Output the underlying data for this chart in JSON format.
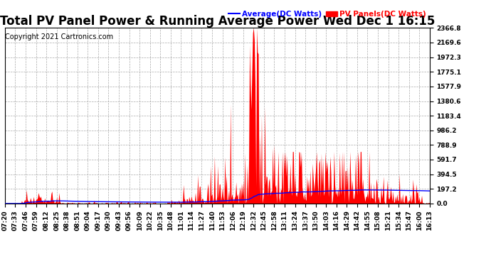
{
  "title": "Total PV Panel Power & Running Average Power Wed Dec 1 16:15",
  "copyright": "Copyright 2021 Cartronics.com",
  "legend_avg": "Average(DC Watts)",
  "legend_pv": "PV Panels(DC Watts)",
  "bg_color": "#ffffff",
  "grid_color": "#aaaaaa",
  "pv_color": "#ff0000",
  "avg_color": "#0000ff",
  "ylim": [
    0.0,
    2366.8
  ],
  "yticks": [
    0.0,
    197.2,
    394.5,
    591.7,
    788.9,
    986.2,
    1183.4,
    1380.6,
    1577.9,
    1775.1,
    1972.3,
    2169.6,
    2366.8
  ],
  "title_fontsize": 12,
  "tick_fontsize": 6.5,
  "copyright_fontsize": 7,
  "xtick_labels": [
    "07:20",
    "07:33",
    "07:46",
    "07:59",
    "08:12",
    "08:25",
    "08:38",
    "08:51",
    "09:04",
    "09:17",
    "09:30",
    "09:43",
    "09:56",
    "10:09",
    "10:22",
    "10:35",
    "10:48",
    "11:01",
    "11:14",
    "11:27",
    "11:40",
    "11:53",
    "12:06",
    "12:19",
    "12:32",
    "12:45",
    "12:58",
    "13:11",
    "13:24",
    "13:37",
    "13:50",
    "14:03",
    "14:16",
    "14:29",
    "14:42",
    "14:55",
    "15:08",
    "15:21",
    "15:34",
    "15:47",
    "16:00",
    "16:13"
  ]
}
